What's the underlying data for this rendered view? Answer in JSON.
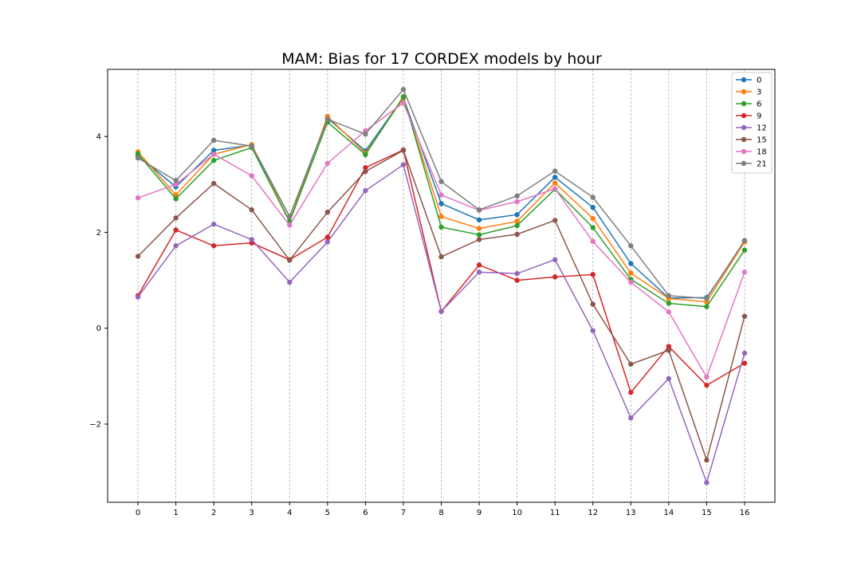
{
  "chart_data": {
    "type": "line",
    "title": "MAM: Bias for 17 CORDEX models by hour",
    "xlabel": "",
    "ylabel": "",
    "x": [
      0,
      1,
      2,
      3,
      4,
      5,
      6,
      7,
      8,
      9,
      10,
      11,
      12,
      13,
      14,
      15,
      16
    ],
    "xlim": [
      -0.8,
      16.8
    ],
    "ylim": [
      -3.63,
      5.4
    ],
    "yticks": [
      -2,
      0,
      2,
      4
    ],
    "ytick_labels": [
      "−2",
      "0",
      "2",
      "4"
    ],
    "xgrid": true,
    "ygrid": false,
    "legend_position": "top-right",
    "series": [
      {
        "name": "0",
        "color": "#1f77b4",
        "values": [
          3.6,
          2.95,
          3.71,
          3.82,
          2.33,
          4.38,
          3.7,
          4.81,
          2.6,
          2.26,
          2.37,
          3.15,
          2.52,
          1.35,
          0.63,
          0.64,
          1.8
        ]
      },
      {
        "name": "3",
        "color": "#ff7f0e",
        "values": [
          3.68,
          2.78,
          3.63,
          3.83,
          2.23,
          4.42,
          3.65,
          4.8,
          2.33,
          2.08,
          2.23,
          3.03,
          2.29,
          1.15,
          0.62,
          0.55,
          1.8
        ]
      },
      {
        "name": "6",
        "color": "#2ca02c",
        "values": [
          3.64,
          2.7,
          3.5,
          3.77,
          2.22,
          4.3,
          3.62,
          4.83,
          2.11,
          1.95,
          2.14,
          2.9,
          2.1,
          1.02,
          0.52,
          0.45,
          1.63
        ]
      },
      {
        "name": "9",
        "color": "#d62728",
        "values": [
          0.68,
          2.05,
          1.72,
          1.78,
          1.43,
          1.9,
          3.35,
          3.72,
          0.35,
          1.32,
          1.0,
          1.07,
          1.12,
          -1.34,
          -0.38,
          -1.19,
          -0.73
        ]
      },
      {
        "name": "12",
        "color": "#9467bd",
        "values": [
          0.65,
          1.72,
          2.17,
          1.85,
          0.96,
          1.8,
          2.87,
          3.41,
          0.35,
          1.17,
          1.14,
          1.43,
          -0.05,
          -1.87,
          -1.05,
          -3.22,
          -0.52
        ]
      },
      {
        "name": "15",
        "color": "#8c564b",
        "values": [
          1.5,
          2.3,
          3.02,
          2.47,
          1.42,
          2.42,
          3.27,
          3.71,
          1.49,
          1.85,
          1.96,
          2.25,
          0.5,
          -0.75,
          -0.46,
          -2.75,
          0.25
        ]
      },
      {
        "name": "18",
        "color": "#e377c2",
        "values": [
          2.72,
          3.0,
          3.63,
          3.18,
          2.15,
          3.44,
          4.12,
          4.7,
          2.78,
          2.46,
          2.64,
          2.91,
          1.81,
          0.96,
          0.34,
          -1.02,
          1.17
        ]
      },
      {
        "name": "21",
        "color": "#7f7f7f",
        "values": [
          3.55,
          3.08,
          3.92,
          3.8,
          2.33,
          4.36,
          4.05,
          4.98,
          3.06,
          2.47,
          2.76,
          3.28,
          2.73,
          1.72,
          0.68,
          0.62,
          1.83
        ]
      }
    ]
  }
}
